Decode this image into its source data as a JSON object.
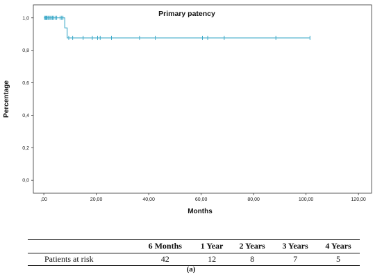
{
  "chart_data": {
    "type": "line",
    "title": "Primary patency",
    "xlabel": "Months",
    "ylabel": "Percentage",
    "xlim": [
      -4,
      125
    ],
    "ylim": [
      -0.08,
      1.08
    ],
    "x_ticks": [
      0,
      20,
      40,
      60,
      80,
      100,
      120
    ],
    "x_tick_labels": [
      ",00",
      "20,00",
      "40,00",
      "60,00",
      "80,00",
      "100,00",
      "120,00"
    ],
    "y_ticks": [
      0,
      0.2,
      0.4,
      0.6,
      0.8,
      1.0
    ],
    "y_tick_labels": [
      "0,0",
      "0,2",
      "0,4",
      "0,6",
      "0,8",
      "1,0"
    ],
    "grid": false,
    "color": "#3aa8c8",
    "series": [
      {
        "step_x": [
          0,
          8.0,
          8.0,
          8.9,
          8.9,
          101.5
        ],
        "step_y": [
          1.0,
          1.0,
          0.938,
          0.938,
          0.876,
          0.876
        ],
        "censored": [
          {
            "x": 0.3,
            "y": 1.0
          },
          {
            "x": 0.6,
            "y": 1.0
          },
          {
            "x": 0.9,
            "y": 1.0
          },
          {
            "x": 1.2,
            "y": 1.0
          },
          {
            "x": 1.6,
            "y": 1.0
          },
          {
            "x": 2.0,
            "y": 1.0
          },
          {
            "x": 2.4,
            "y": 1.0
          },
          {
            "x": 2.9,
            "y": 1.0
          },
          {
            "x": 3.3,
            "y": 1.0
          },
          {
            "x": 3.8,
            "y": 1.0
          },
          {
            "x": 4.3,
            "y": 1.0
          },
          {
            "x": 4.9,
            "y": 1.0
          },
          {
            "x": 6.2,
            "y": 1.0
          },
          {
            "x": 6.8,
            "y": 1.0
          },
          {
            "x": 7.3,
            "y": 1.0
          },
          {
            "x": 9.5,
            "y": 0.876
          },
          {
            "x": 11.0,
            "y": 0.876
          },
          {
            "x": 15.0,
            "y": 0.876
          },
          {
            "x": 18.5,
            "y": 0.876
          },
          {
            "x": 20.5,
            "y": 0.876
          },
          {
            "x": 21.5,
            "y": 0.876
          },
          {
            "x": 25.8,
            "y": 0.876
          },
          {
            "x": 36.5,
            "y": 0.876
          },
          {
            "x": 42.5,
            "y": 0.876
          },
          {
            "x": 60.5,
            "y": 0.876
          },
          {
            "x": 62.5,
            "y": 0.876
          },
          {
            "x": 68.8,
            "y": 0.876
          },
          {
            "x": 88.5,
            "y": 0.876
          },
          {
            "x": 101.5,
            "y": 0.876
          }
        ]
      }
    ]
  },
  "risk_table": {
    "headers": [
      "",
      "6 Months",
      "1 Year",
      "2 Years",
      "3 Years",
      "4 Years"
    ],
    "row_label": "Patients at risk",
    "values": [
      "42",
      "12",
      "8",
      "7",
      "5"
    ]
  },
  "caption": "(a)"
}
